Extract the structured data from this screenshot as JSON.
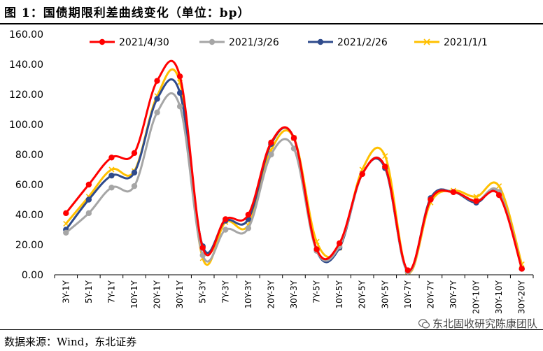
{
  "figure": {
    "title": "图  1：国债期限利差曲线变化（单位：bp）",
    "source": "数据来源：Wind，东北证券",
    "watermark": "东北固收研究陈康团队"
  },
  "chart_data": {
    "type": "line",
    "title": "国债期限利差曲线变化（单位：bp）",
    "xlabel": "",
    "ylabel": "",
    "ylim": [
      0,
      160
    ],
    "yticks": [
      "0.00",
      "20.00",
      "40.00",
      "60.00",
      "80.00",
      "100.00",
      "120.00",
      "140.00",
      "160.00"
    ],
    "ytick_values": [
      0,
      20,
      40,
      60,
      80,
      100,
      120,
      140,
      160
    ],
    "categories": [
      "3Y-1Y",
      "5Y-1Y",
      "7Y-1Y",
      "10Y-1Y",
      "20Y-1Y",
      "30Y-1Y",
      "5Y-3Y",
      "7Y-3Y",
      "10Y-3Y",
      "20Y-3Y",
      "30Y-3Y",
      "7Y-5Y",
      "10Y-5Y",
      "20Y-5Y",
      "30Y-5Y",
      "10Y-7Y",
      "20Y-7Y",
      "30Y-7Y",
      "20Y-10Y",
      "30Y-10Y",
      "30Y-20Y"
    ],
    "legend_position": "top",
    "series": [
      {
        "name": "2021/4/30",
        "color": "#ff0000",
        "marker": "circle",
        "values": [
          41,
          60,
          78,
          81,
          129,
          132,
          18,
          37,
          40,
          88,
          91,
          17,
          21,
          67,
          72,
          3,
          50,
          55,
          49,
          53,
          4
        ]
      },
      {
        "name": "2021/3/26",
        "color": "#a6a6a6",
        "marker": "circle",
        "values": [
          28,
          41,
          58,
          59,
          108,
          112,
          13,
          30,
          31,
          80,
          84,
          16,
          19,
          67,
          72,
          2,
          50,
          55,
          49,
          55,
          4
        ]
      },
      {
        "name": "2021/2/26",
        "color": "#2f4b8c",
        "marker": "circle",
        "values": [
          30,
          50,
          66,
          68,
          117,
          121,
          19,
          36,
          37,
          87,
          91,
          16,
          18,
          67,
          71,
          2,
          51,
          55,
          48,
          55,
          4
        ]
      },
      {
        "name": "2021/1/1",
        "color": "#ffc000",
        "marker": "x",
        "values": [
          34,
          52,
          70,
          69,
          119,
          128,
          11,
          35,
          33,
          83,
          91,
          22,
          18,
          70,
          79,
          2,
          48,
          56,
          52,
          59,
          7
        ]
      }
    ]
  }
}
